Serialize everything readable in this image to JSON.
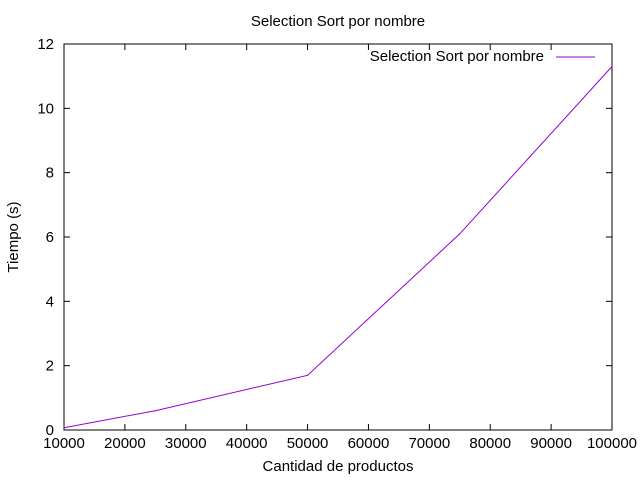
{
  "chart_data": {
    "type": "line",
    "title": "Selection Sort por nombre",
    "xlabel": "Cantidad de productos",
    "ylabel": "Tiempo (s)",
    "xlim": [
      10000,
      100000
    ],
    "ylim": [
      0,
      12
    ],
    "xticks": [
      10000,
      20000,
      30000,
      40000,
      50000,
      60000,
      70000,
      80000,
      90000,
      100000
    ],
    "yticks": [
      0,
      2,
      4,
      6,
      8,
      10,
      12
    ],
    "grid": false,
    "legend_position": "top-right",
    "series": [
      {
        "name": "Selection Sort por nombre",
        "color": "#9400d3",
        "x": [
          10000,
          25000,
          50000,
          75000,
          100000
        ],
        "y": [
          0.07,
          0.6,
          1.7,
          6.1,
          11.3
        ]
      }
    ]
  }
}
